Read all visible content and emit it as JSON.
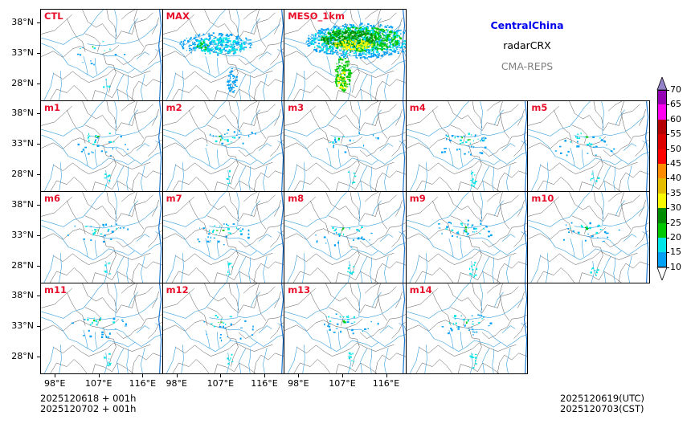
{
  "panels": [
    {
      "label": "CTL",
      "row": 0,
      "col": 0,
      "density": 0.15
    },
    {
      "label": "MAX",
      "row": 0,
      "col": 1,
      "density": 1.0
    },
    {
      "label": "MESO_1km",
      "row": 0,
      "col": 2,
      "density": 3.0
    },
    {
      "label": "m1",
      "row": 1,
      "col": 0,
      "density": 0.35
    },
    {
      "label": "m2",
      "row": 1,
      "col": 1,
      "density": 0.3
    },
    {
      "label": "m3",
      "row": 1,
      "col": 2,
      "density": 0.2
    },
    {
      "label": "m4",
      "row": 1,
      "col": 3,
      "density": 0.45
    },
    {
      "label": "m5",
      "row": 1,
      "col": 4,
      "density": 0.35
    },
    {
      "label": "m6",
      "row": 2,
      "col": 0,
      "density": 0.3
    },
    {
      "label": "m7",
      "row": 2,
      "col": 1,
      "density": 0.4
    },
    {
      "label": "m8",
      "row": 2,
      "col": 2,
      "density": 0.35
    },
    {
      "label": "m9",
      "row": 2,
      "col": 3,
      "density": 0.45
    },
    {
      "label": "m10",
      "row": 2,
      "col": 4,
      "density": 0.35
    },
    {
      "label": "m11",
      "row": 3,
      "col": 0,
      "density": 0.35
    },
    {
      "label": "m12",
      "row": 3,
      "col": 1,
      "density": 0.3
    },
    {
      "label": "m13",
      "row": 3,
      "col": 2,
      "density": 0.4
    },
    {
      "label": "m14",
      "row": 3,
      "col": 3,
      "density": 0.4
    }
  ],
  "y_axis_labels": [
    "38°N",
    "33°N",
    "28°N"
  ],
  "y_axis_lat": [
    38,
    33,
    28
  ],
  "x_axis_labels": [
    "98°E",
    "107°E",
    "116°E"
  ],
  "x_axis_lon": [
    98,
    107,
    116
  ],
  "map_extent": {
    "lon_min": 95,
    "lon_max": 120,
    "lat_min": 25.3,
    "lat_max": 40.2
  },
  "info": {
    "region": "CentralChina",
    "variable": "radarCRX",
    "system": "CMA-REPS",
    "region_color": "#0000ee",
    "variable_color": "#000000",
    "system_color": "#808080"
  },
  "colorbar": {
    "levels": [
      "10",
      "15",
      "20",
      "25",
      "30",
      "35",
      "40",
      "45",
      "50",
      "55",
      "60",
      "65",
      "70"
    ],
    "colors": [
      "#00a0f5",
      "#00e6e6",
      "#00c800",
      "#008c00",
      "#fafa00",
      "#e6be00",
      "#ff8c00",
      "#ff0000",
      "#dc0000",
      "#b40000",
      "#ff00f0",
      "#9600b4",
      "#9482c8"
    ],
    "under_color": "#ffffff",
    "over_color": "#9482c8"
  },
  "times": {
    "init_utc": "2025120618  +  001h",
    "init_cst": "2025120702  +  001h",
    "valid_utc": "2025120619(UTC)",
    "valid_cst": "2025120703(CST)"
  }
}
